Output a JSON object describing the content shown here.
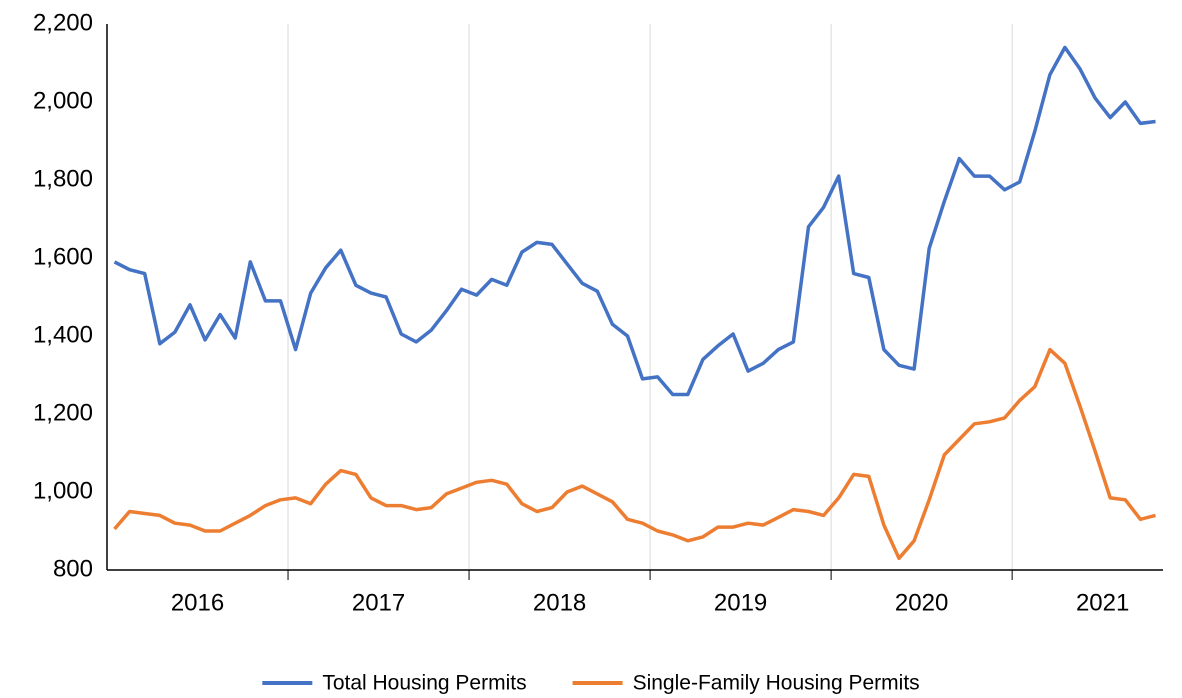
{
  "chart_data": {
    "type": "line",
    "categories": [
      null,
      null,
      null,
      null,
      null,
      null,
      "2016",
      null,
      null,
      null,
      null,
      null,
      null,
      null,
      null,
      null,
      null,
      null,
      "2017",
      null,
      null,
      null,
      null,
      null,
      null,
      null,
      null,
      null,
      null,
      null,
      "2018",
      null,
      null,
      null,
      null,
      null,
      null,
      null,
      null,
      null,
      null,
      null,
      "2019",
      null,
      null,
      null,
      null,
      null,
      null,
      null,
      null,
      null,
      null,
      null,
      "2020",
      null,
      null,
      null,
      null,
      null,
      null,
      null,
      null,
      null,
      null,
      null,
      "2021",
      null,
      null,
      null
    ],
    "series": [
      {
        "name": "Total Housing Permits",
        "color": "#4472c4",
        "values": [
          1590,
          1570,
          1560,
          1380,
          1410,
          1480,
          1390,
          1455,
          1395,
          1590,
          1490,
          1490,
          1365,
          1510,
          1575,
          1620,
          1530,
          1510,
          1500,
          1405,
          1385,
          1415,
          1465,
          1520,
          1505,
          1545,
          1530,
          1615,
          1640,
          1635,
          1585,
          1535,
          1515,
          1430,
          1400,
          1290,
          1295,
          1250,
          1250,
          1340,
          1375,
          1405,
          1310,
          1330,
          1365,
          1385,
          1680,
          1730,
          1810,
          1560,
          1550,
          1365,
          1325,
          1315,
          1625,
          1745,
          1855,
          1810,
          1810,
          1775,
          1795,
          1925,
          2070,
          2140,
          2085,
          2010,
          1960,
          2000,
          1945,
          1950
        ]
      },
      {
        "name": "Single-Family Housing Permits",
        "color": "#ed7d31",
        "values": [
          905,
          950,
          945,
          940,
          920,
          915,
          900,
          900,
          920,
          940,
          965,
          980,
          985,
          970,
          1020,
          1055,
          1045,
          985,
          965,
          965,
          955,
          960,
          995,
          1010,
          1025,
          1030,
          1020,
          970,
          950,
          960,
          1000,
          1015,
          995,
          975,
          930,
          920,
          900,
          890,
          875,
          885,
          910,
          910,
          920,
          915,
          935,
          955,
          950,
          940,
          985,
          1045,
          1040,
          915,
          830,
          875,
          980,
          1095,
          1135,
          1175,
          1180,
          1190,
          1235,
          1270,
          1365,
          1330,
          1220,
          1105,
          985,
          980,
          930,
          940
        ]
      }
    ],
    "ylim": [
      800,
      2200
    ],
    "yticks": [
      {
        "value": 800,
        "label": "800"
      },
      {
        "value": 1000,
        "label": "1,000"
      },
      {
        "value": 1200,
        "label": "1,200"
      },
      {
        "value": 1400,
        "label": "1,400"
      },
      {
        "value": 1600,
        "label": "1,600"
      },
      {
        "value": 1800,
        "label": "1,800"
      },
      {
        "value": 2000,
        "label": "2,000"
      },
      {
        "value": 2200,
        "label": "2,200"
      }
    ],
    "grid": "x",
    "legend": "bottom"
  }
}
